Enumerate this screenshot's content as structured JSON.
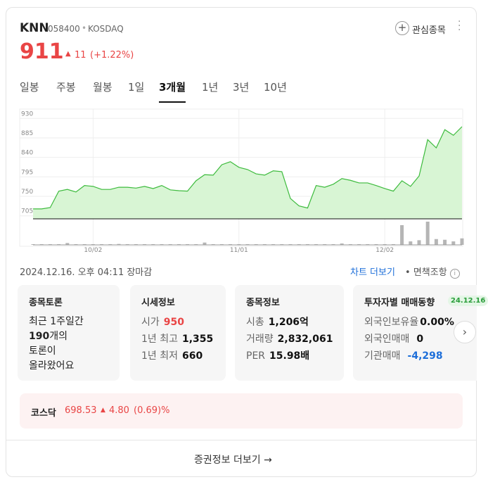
{
  "header": {
    "name": "KNN",
    "code": "058400",
    "market": "KOSDAQ",
    "watch": "관심종목"
  },
  "price": {
    "current": "911",
    "change": "11",
    "change_pct": "(+1.22%)"
  },
  "tabs": {
    "items": [
      "일봉",
      "주봉",
      "월봉",
      "1일",
      "3개월",
      "1년",
      "3년",
      "10년"
    ],
    "active": 4
  },
  "chart_data": {
    "type": "line",
    "categories": [
      null,
      null,
      null,
      null,
      null,
      null,
      null,
      "10/02",
      null,
      null,
      null,
      null,
      null,
      null,
      null,
      null,
      null,
      null,
      null,
      null,
      null,
      null,
      null,
      null,
      "11/01",
      null,
      null,
      null,
      null,
      null,
      null,
      null,
      null,
      null,
      null,
      null,
      null,
      null,
      null,
      null,
      null,
      "12/02",
      null,
      null,
      null,
      null,
      null,
      null,
      null,
      null,
      null
    ],
    "series": [
      {
        "color": "#3dbb3d",
        "values": [
          721,
          721,
          724,
          762,
          766,
          760,
          775,
          773,
          766,
          766,
          771,
          771,
          769,
          773,
          768,
          775,
          765,
          763,
          762,
          786,
          800,
          799,
          823,
          830,
          817,
          812,
          802,
          799,
          809,
          807,
          745,
          728,
          723,
          775,
          771,
          778,
          791,
          787,
          781,
          781,
          775,
          768,
          762,
          786,
          773,
          797,
          881,
          862,
          904,
          891,
          911
        ]
      }
    ],
    "volume": {
      "color": "#b5b5b5",
      "values": [
        3,
        3,
        3,
        3,
        8,
        3,
        3,
        3,
        3,
        3,
        4,
        3,
        3,
        3,
        3,
        3,
        3,
        3,
        3,
        3,
        10,
        3,
        3,
        3,
        3,
        3,
        3,
        3,
        3,
        3,
        3,
        3,
        3,
        3,
        3,
        3,
        6,
        3,
        3,
        3,
        3,
        3,
        3,
        85,
        15,
        20,
        100,
        25,
        22,
        15,
        28
      ]
    },
    "vlim": [
      0,
      100
    ],
    "ylim": [
      698,
      950
    ],
    "yticks": [
      705,
      750,
      795,
      840,
      885,
      930
    ],
    "grid": true
  },
  "info": {
    "timestamp": "2024.12.16. 오후 04:11 장마감",
    "more_chart": "차트 더보기",
    "disclaimer": "면책조항"
  },
  "cards": [
    {
      "title": "종목토론",
      "line1": "최근 1주일간",
      "count": "190",
      "count_suffix": "개의",
      "line3": "토론이",
      "line4": "올라왔어요"
    },
    {
      "title": "시세정보",
      "rows": [
        [
          "시가",
          "950"
        ],
        [
          "1년 최고",
          "1,355"
        ],
        [
          "1년 최저",
          "660"
        ]
      ]
    },
    {
      "title": "종목정보",
      "rows": [
        [
          "시총",
          "1,206억"
        ],
        [
          "거래량",
          "2,832,061"
        ],
        [
          "PER",
          "15.98배"
        ]
      ]
    },
    {
      "title": "투자자별 매매동향",
      "badge": "24.12.16",
      "rows": [
        [
          "외국인보유율",
          "0.00%"
        ],
        [
          "외국인매매",
          "0"
        ],
        [
          "기관매매",
          "-4,298"
        ]
      ]
    }
  ],
  "index": {
    "name": "코스닥",
    "value": "698.53",
    "change": "4.80",
    "change_pct": "(0.69)%"
  },
  "footer": {
    "more": "증권정보 더보기"
  }
}
